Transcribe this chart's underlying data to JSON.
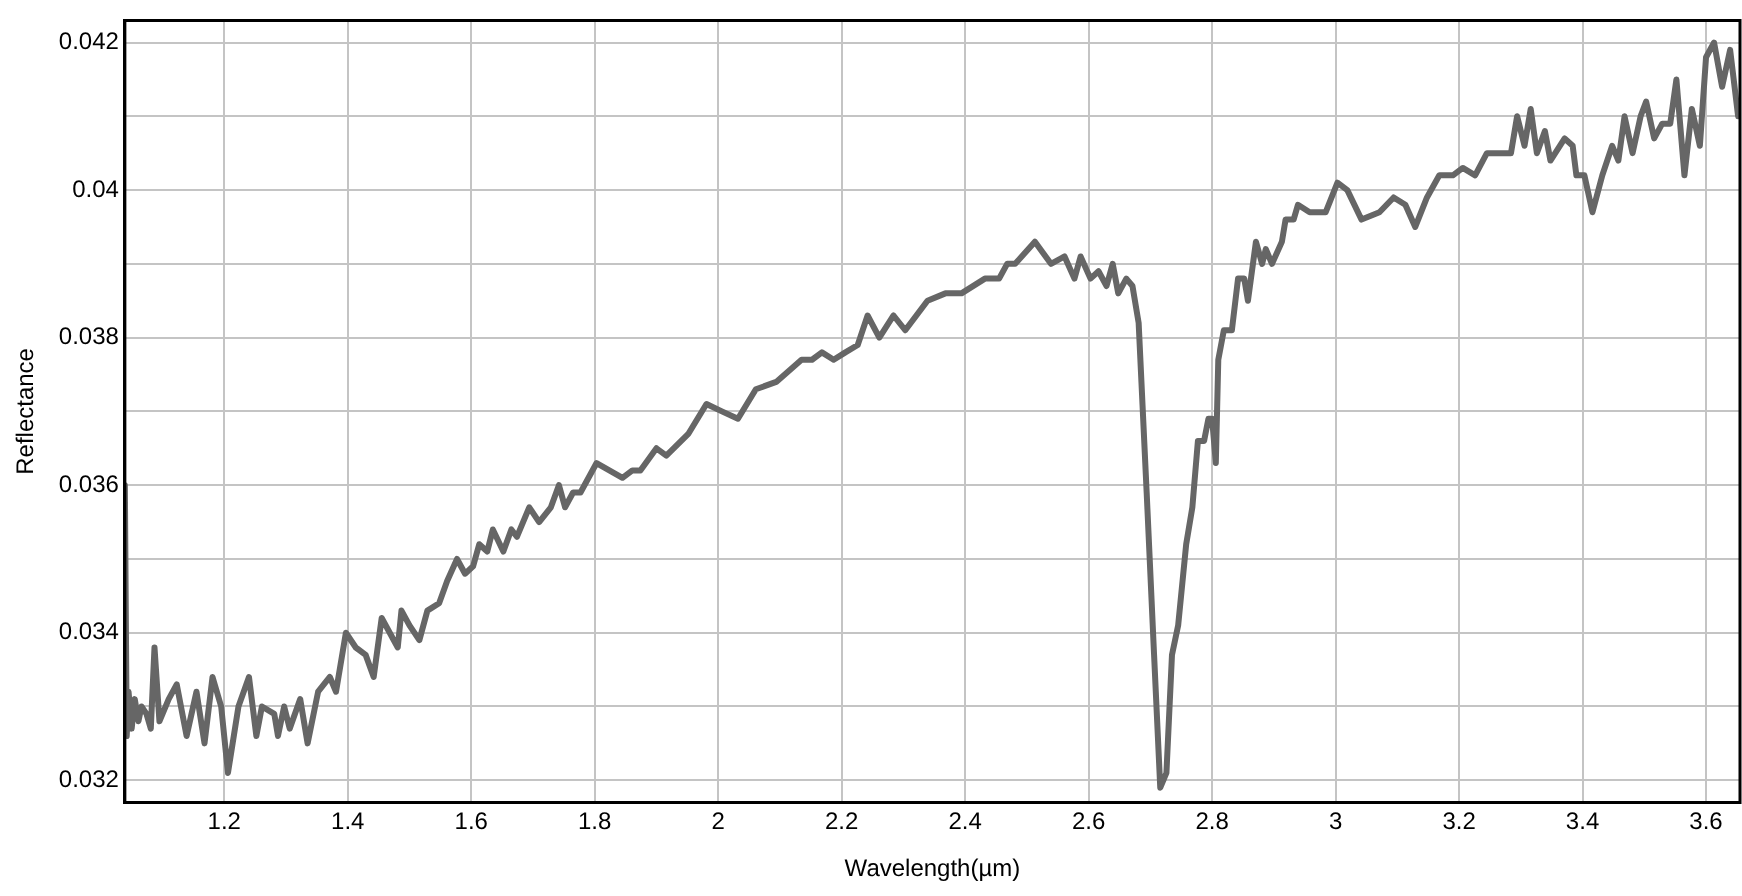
{
  "chart_data": {
    "type": "line",
    "xlabel": "Wavelength(µm)",
    "ylabel": "Reflectance",
    "grid": true,
    "legend": false,
    "marker": "none",
    "line_style": "solid",
    "xlim": [
      1.039,
      3.655
    ],
    "ylim": [
      0.0317,
      0.0423
    ],
    "xticks": [
      1.2,
      1.4,
      1.6,
      1.8,
      2,
      2.2,
      2.4,
      2.6,
      2.8,
      3,
      3.2,
      3.4,
      3.6
    ],
    "yticks": [
      0.032,
      {
        "value": 0.033,
        "label": null
      },
      0.034,
      {
        "value": 0.035,
        "label": null
      },
      0.036,
      {
        "value": 0.037,
        "label": null
      },
      0.038,
      {
        "value": 0.039,
        "label": null
      },
      0.04,
      {
        "value": 0.041,
        "label": null
      },
      0.042
    ],
    "series": [
      {
        "color": "#666666",
        "x": [
          1.039,
          1.042,
          1.045,
          1.05,
          1.055,
          1.061,
          1.066,
          1.074,
          1.081,
          1.087,
          1.095,
          1.11,
          1.123,
          1.139,
          1.155,
          1.168,
          1.181,
          1.195,
          1.206,
          1.223,
          1.24,
          1.252,
          1.261,
          1.281,
          1.287,
          1.297,
          1.306,
          1.323,
          1.335,
          1.352,
          1.371,
          1.381,
          1.397,
          1.413,
          1.429,
          1.442,
          1.455,
          1.468,
          1.481,
          1.487,
          1.5,
          1.516,
          1.529,
          1.548,
          1.561,
          1.577,
          1.59,
          1.603,
          1.613,
          1.626,
          1.635,
          1.652,
          1.665,
          1.674,
          1.694,
          1.71,
          1.729,
          1.742,
          1.752,
          1.765,
          1.777,
          1.803,
          1.845,
          1.861,
          1.874,
          1.9,
          1.916,
          1.952,
          1.981,
          2.006,
          2.032,
          2.061,
          2.094,
          2.135,
          2.152,
          2.168,
          2.187,
          2.206,
          2.226,
          2.242,
          2.261,
          2.284,
          2.303,
          2.339,
          2.368,
          2.394,
          2.432,
          2.455,
          2.468,
          2.481,
          2.513,
          2.539,
          2.561,
          2.577,
          2.587,
          2.603,
          2.616,
          2.629,
          2.639,
          2.648,
          2.661,
          2.671,
          2.681,
          2.694,
          2.706,
          2.716,
          2.726,
          2.735,
          2.745,
          2.758,
          2.768,
          2.777,
          2.787,
          2.794,
          2.8,
          2.806,
          2.81,
          2.819,
          2.832,
          2.842,
          2.852,
          2.858,
          2.871,
          2.881,
          2.887,
          2.897,
          2.913,
          2.919,
          2.932,
          2.939,
          2.958,
          2.984,
          3.003,
          3.019,
          3.042,
          3.071,
          3.094,
          3.113,
          3.129,
          3.148,
          3.168,
          3.19,
          3.206,
          3.226,
          3.245,
          3.265,
          3.284,
          3.294,
          3.306,
          3.316,
          3.326,
          3.339,
          3.348,
          3.371,
          3.384,
          3.39,
          3.403,
          3.416,
          3.432,
          3.448,
          3.458,
          3.468,
          3.481,
          3.494,
          3.503,
          3.516,
          3.529,
          3.542,
          3.552,
          3.565,
          3.577,
          3.59,
          3.6,
          3.613,
          3.626,
          3.639,
          3.652
        ],
        "values": [
          0.036,
          0.0326,
          0.0332,
          0.0327,
          0.0331,
          0.0328,
          0.033,
          0.0329,
          0.0327,
          0.0338,
          0.0328,
          0.0331,
          0.0333,
          0.0326,
          0.0332,
          0.0325,
          0.0334,
          0.033,
          0.0321,
          0.033,
          0.0334,
          0.0326,
          0.033,
          0.0329,
          0.0326,
          0.033,
          0.0327,
          0.0331,
          0.0325,
          0.0332,
          0.0334,
          0.0332,
          0.034,
          0.0338,
          0.0337,
          0.0334,
          0.0342,
          0.034,
          0.0338,
          0.0343,
          0.0341,
          0.0339,
          0.0343,
          0.0344,
          0.0347,
          0.035,
          0.0348,
          0.0349,
          0.0352,
          0.0351,
          0.0354,
          0.0351,
          0.0354,
          0.0353,
          0.0357,
          0.0355,
          0.0357,
          0.036,
          0.0357,
          0.0359,
          0.0359,
          0.0363,
          0.0361,
          0.0362,
          0.0362,
          0.0365,
          0.0364,
          0.0367,
          0.0371,
          0.037,
          0.0369,
          0.0373,
          0.0374,
          0.0377,
          0.0377,
          0.0378,
          0.0377,
          0.0378,
          0.0379,
          0.0383,
          0.038,
          0.0383,
          0.0381,
          0.0385,
          0.0386,
          0.0386,
          0.0388,
          0.0388,
          0.039,
          0.039,
          0.0393,
          0.039,
          0.0391,
          0.0388,
          0.0391,
          0.0388,
          0.0389,
          0.0387,
          0.039,
          0.0386,
          0.0388,
          0.0387,
          0.0382,
          0.0359,
          0.0337,
          0.0319,
          0.0321,
          0.0337,
          0.0341,
          0.0352,
          0.0357,
          0.0366,
          0.0366,
          0.0369,
          0.0369,
          0.0363,
          0.0377,
          0.0381,
          0.0381,
          0.0388,
          0.0388,
          0.0385,
          0.0393,
          0.039,
          0.0392,
          0.039,
          0.0393,
          0.0396,
          0.0396,
          0.0398,
          0.0397,
          0.0397,
          0.0401,
          0.04,
          0.0396,
          0.0397,
          0.0399,
          0.0398,
          0.0395,
          0.0399,
          0.0402,
          0.0402,
          0.0403,
          0.0402,
          0.0405,
          0.0405,
          0.0405,
          0.041,
          0.0406,
          0.0411,
          0.0405,
          0.0408,
          0.0404,
          0.0407,
          0.0406,
          0.0402,
          0.0402,
          0.0397,
          0.0402,
          0.0406,
          0.0404,
          0.041,
          0.0405,
          0.041,
          0.0412,
          0.0407,
          0.0409,
          0.0409,
          0.0415,
          0.0402,
          0.0411,
          0.0406,
          0.0418,
          0.042,
          0.0414,
          0.0419,
          0.041
        ]
      }
    ]
  }
}
